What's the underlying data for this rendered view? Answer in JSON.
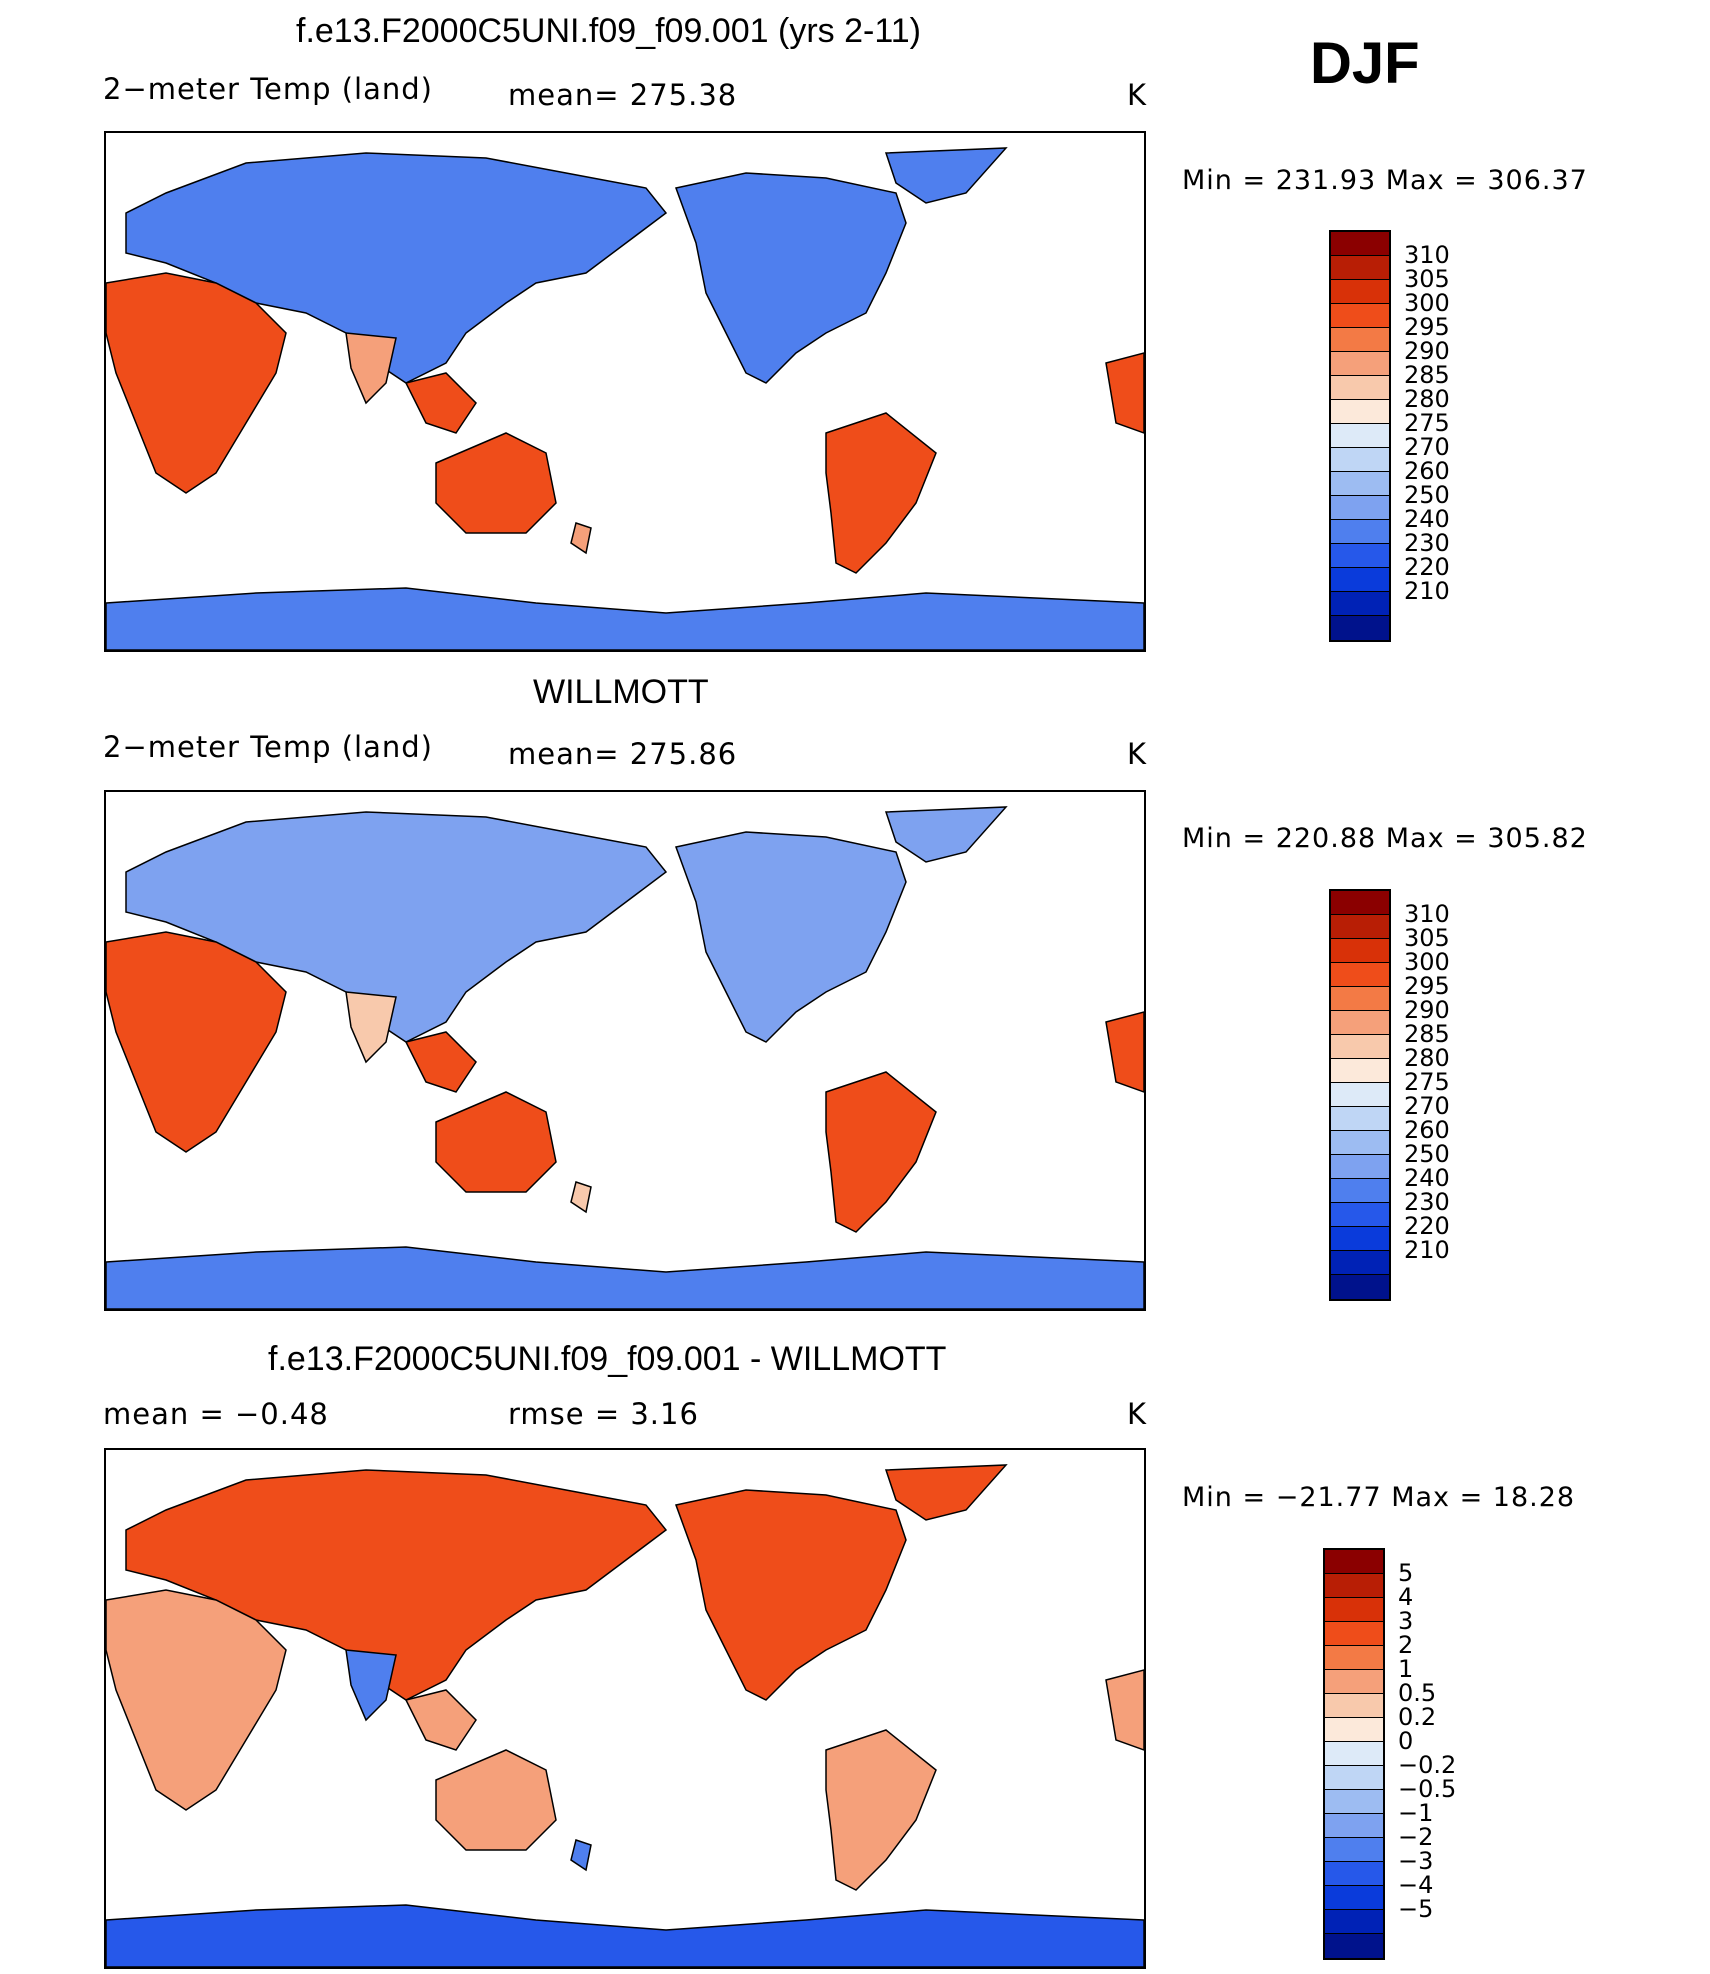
{
  "season": "DJF",
  "panels": [
    {
      "title": "f.e13.F2000C5UNI.f09_f09.001 (yrs 2-11)",
      "left_label": "2−meter Temp (land)",
      "center_label": "mean=  275.38",
      "units": "K",
      "minmax": "Min  =  231.93  Max  =  306.37",
      "colorbar": {
        "colors": [
          "#8b0000",
          "#b81e05",
          "#d83108",
          "#ef4d1a",
          "#f37a45",
          "#f5a07a",
          "#f8c9ac",
          "#fce9da",
          "#ddeaf8",
          "#bfd6f5",
          "#9dbcf2",
          "#7ea2f0",
          "#4f7fee",
          "#2658ea",
          "#0a3bdb",
          "#0022b6",
          "#00128c"
        ],
        "labels": [
          "310",
          "305",
          "300",
          "295",
          "290",
          "285",
          "280",
          "275",
          "270",
          "260",
          "250",
          "240",
          "230",
          "220",
          "210"
        ]
      },
      "map_fill": {
        "north": "#4f7fee",
        "mid": "#f5a07a",
        "tropic": "#ef4d1a",
        "antarctic": "#4f7fee"
      }
    },
    {
      "title": "WILLMOTT",
      "left_label": "2−meter Temp (land)",
      "center_label": "mean=  275.86",
      "units": "K",
      "minmax": "Min  =  220.88  Max  =  305.82",
      "colorbar": {
        "colors": [
          "#8b0000",
          "#b81e05",
          "#d83108",
          "#ef4d1a",
          "#f37a45",
          "#f5a07a",
          "#f8c9ac",
          "#fce9da",
          "#ddeaf8",
          "#bfd6f5",
          "#9dbcf2",
          "#7ea2f0",
          "#4f7fee",
          "#2658ea",
          "#0a3bdb",
          "#0022b6",
          "#00128c"
        ],
        "labels": [
          "310",
          "305",
          "300",
          "295",
          "290",
          "285",
          "280",
          "275",
          "270",
          "260",
          "250",
          "240",
          "230",
          "220",
          "210"
        ]
      },
      "map_fill": {
        "north": "#7ea2f0",
        "mid": "#f8c9ac",
        "tropic": "#ef4d1a",
        "antarctic": "#4f7fee"
      }
    },
    {
      "title": "f.e13.F2000C5UNI.f09_f09.001 - WILLMOTT",
      "left_label": "mean  =    −0.48",
      "center_label": "rmse  =     3.16",
      "units": "K",
      "minmax": "Min  =  −21.77  Max  =    18.28",
      "colorbar": {
        "colors": [
          "#8b0000",
          "#b81e05",
          "#d83108",
          "#ef4d1a",
          "#f37a45",
          "#f5a07a",
          "#f8c9ac",
          "#fce9da",
          "#ddeaf8",
          "#bfd6f5",
          "#9dbcf2",
          "#7ea2f0",
          "#4f7fee",
          "#2658ea",
          "#0a3bdb",
          "#0022b6",
          "#00128c"
        ],
        "labels": [
          "5",
          "4",
          "3",
          "2",
          "1",
          "0.5",
          "0.2",
          "0",
          "−0.2",
          "−0.5",
          "−1",
          "−2",
          "−3",
          "−4",
          "−5"
        ]
      },
      "map_fill": {
        "north": "#ef4d1a",
        "mid": "#4f7fee",
        "tropic": "#f5a07a",
        "antarctic": "#2658ea"
      }
    }
  ]
}
